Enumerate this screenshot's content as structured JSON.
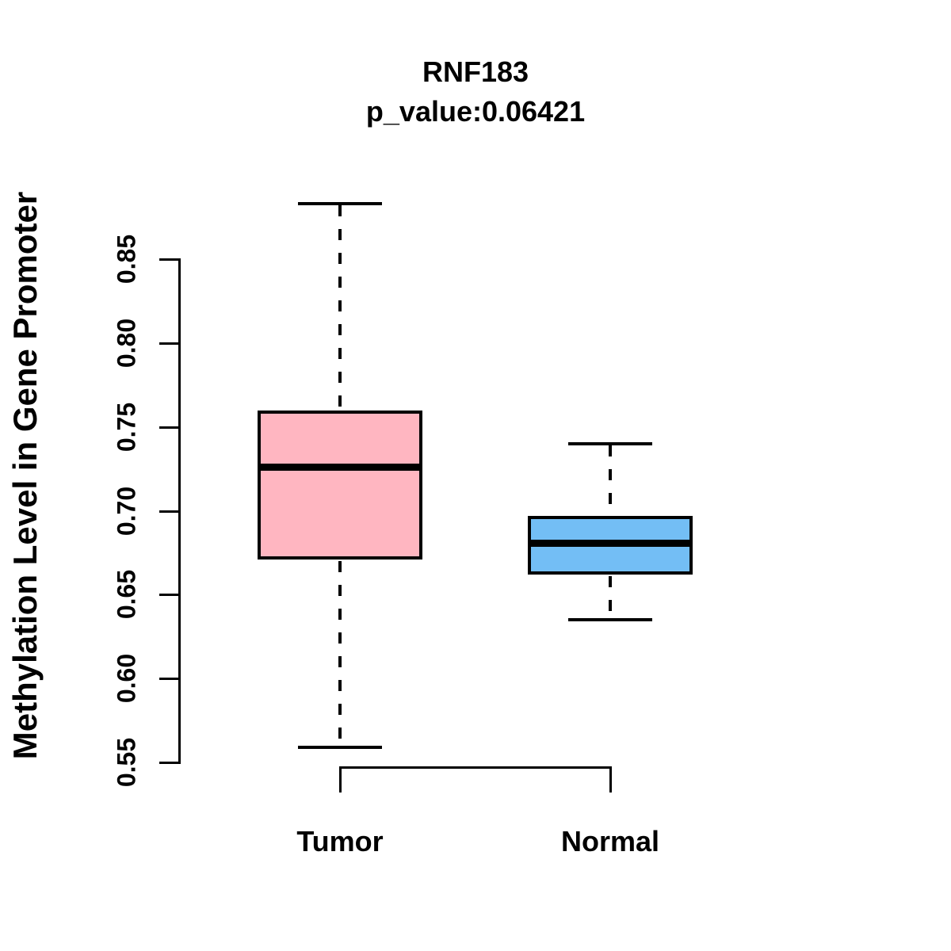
{
  "title": "RNF183",
  "subtitle": "p_value:0.06421",
  "chart_data": {
    "type": "boxplot",
    "title": "RNF183",
    "subtitle": "p_value:0.06421",
    "xlabel": "",
    "ylabel": "Methylation Level in Gene Promoter",
    "categories": [
      "Tumor",
      "Normal"
    ],
    "y_axis": {
      "tick_values": [
        0.55,
        0.6,
        0.65,
        0.7,
        0.75,
        0.8,
        0.85
      ],
      "tick_labels": [
        "0.55",
        "0.60",
        "0.65",
        "0.70",
        "0.75",
        "0.80",
        "0.85"
      ],
      "range_shown": [
        0.55,
        0.85
      ]
    },
    "series": [
      {
        "name": "Tumor",
        "whisker_low": 0.559,
        "q1": 0.671,
        "median": 0.726,
        "q3": 0.76,
        "whisker_high": 0.883,
        "fill_color": "#FFB6C1"
      },
      {
        "name": "Normal",
        "whisker_low": 0.635,
        "q1": 0.662,
        "median": 0.681,
        "q3": 0.697,
        "whisker_high": 0.74,
        "fill_color": "#73BEF5"
      }
    ],
    "grid": false,
    "legend": false,
    "colors": {
      "axis": "#000000",
      "text": "#000000",
      "tumor_fill": "#FFB6C1",
      "normal_fill": "#73BEF5"
    }
  }
}
